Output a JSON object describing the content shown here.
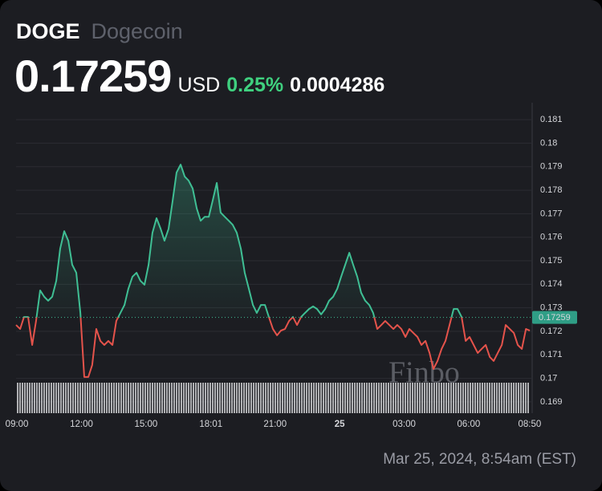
{
  "header": {
    "symbol": "DOGE",
    "name": "Dogecoin",
    "price": "0.17259",
    "currency": "USD",
    "change_percent": "0.25%",
    "change": "0.0004286"
  },
  "chart_data": {
    "type": "line",
    "x": [
      8.96,
      9.15,
      9.33,
      9.52,
      9.71,
      9.89,
      10.08,
      10.27,
      10.45,
      10.64,
      10.83,
      11.01,
      11.2,
      11.39,
      11.57,
      11.76,
      11.95,
      12.13,
      12.32,
      12.5,
      12.69,
      12.88,
      13.06,
      13.25,
      13.44,
      13.62,
      13.81,
      14.0,
      14.18,
      14.37,
      14.56,
      14.74,
      14.93,
      15.12,
      15.3,
      15.49,
      15.68,
      15.86,
      16.05,
      16.24,
      16.42,
      16.61,
      16.8,
      16.98,
      17.17,
      17.36,
      17.54,
      17.73,
      17.92,
      18.1,
      18.29,
      18.47,
      18.66,
      18.85,
      19.03,
      19.22,
      19.41,
      19.59,
      19.78,
      19.97,
      20.15,
      20.34,
      20.53,
      20.71,
      20.9,
      21.09,
      21.27,
      21.46,
      21.65,
      21.83,
      22.02,
      22.21,
      22.39,
      22.58,
      22.77,
      22.95,
      23.14,
      23.33,
      23.51,
      23.7,
      23.89,
      24.07,
      24.26,
      24.45,
      24.63,
      24.82,
      25.0,
      25.19,
      25.38,
      25.56,
      25.75,
      25.94,
      26.12,
      26.31,
      26.5,
      26.68,
      26.87,
      27.06,
      27.24,
      27.43,
      27.62,
      27.8,
      27.99,
      28.18,
      28.36,
      28.55,
      28.74,
      28.92,
      29.11,
      29.3,
      29.48,
      29.67,
      29.86,
      30.04,
      30.23,
      30.42,
      30.6,
      30.79,
      30.98,
      31.16,
      31.35,
      31.54,
      31.72,
      31.91,
      32.1,
      32.28,
      32.47,
      32.66,
      32.84
    ],
    "values": [
      0.17227,
      0.1721,
      0.17261,
      0.17261,
      0.17142,
      0.17244,
      0.17374,
      0.17347,
      0.1733,
      0.17347,
      0.17415,
      0.17551,
      0.17626,
      0.17585,
      0.17483,
      0.17449,
      0.17278,
      0.17006,
      0.17006,
      0.17057,
      0.1721,
      0.17159,
      0.17142,
      0.17159,
      0.17142,
      0.17244,
      0.17278,
      0.17312,
      0.17381,
      0.17432,
      0.17449,
      0.17415,
      0.17398,
      0.17483,
      0.17619,
      0.17681,
      0.17636,
      0.17585,
      0.17636,
      0.17756,
      0.17875,
      0.17909,
      0.17858,
      0.17841,
      0.17807,
      0.17722,
      0.1767,
      0.17687,
      0.17687,
      0.17756,
      0.17831,
      0.17705,
      0.17687,
      0.1767,
      0.17653,
      0.17619,
      0.17551,
      0.17449,
      0.17381,
      0.17312,
      0.17278,
      0.17312,
      0.17312,
      0.17261,
      0.1721,
      0.17183,
      0.17203,
      0.1721,
      0.17244,
      0.17261,
      0.17227,
      0.17261,
      0.17278,
      0.17295,
      0.17306,
      0.17295,
      0.17272,
      0.17295,
      0.1733,
      0.17347,
      0.17381,
      0.17432,
      0.17483,
      0.17534,
      0.17483,
      0.17432,
      0.17364,
      0.1733,
      0.17312,
      0.17278,
      0.1721,
      0.17227,
      0.17244,
      0.17227,
      0.1721,
      0.17227,
      0.1721,
      0.17176,
      0.1721,
      0.17193,
      0.17176,
      0.17142,
      0.17159,
      0.17108,
      0.1704,
      0.17074,
      0.17125,
      0.17159,
      0.17227,
      0.17295,
      0.17295,
      0.17261,
      0.17159,
      0.17176,
      0.17142,
      0.17108,
      0.17125,
      0.17142,
      0.17091,
      0.17074,
      0.17108,
      0.17142,
      0.17227,
      0.1721,
      0.17193,
      0.17142,
      0.17125,
      0.1721,
      0.17203
    ],
    "color_above": "#3fbf94",
    "color_below": "#e5534b",
    "current_value": 0.17259,
    "xlim": [
      8.96,
      32.95
    ],
    "xticks": [
      {
        "value": 9,
        "label": "09:00"
      },
      {
        "value": 12,
        "label": "12:00"
      },
      {
        "value": 15,
        "label": "15:00"
      },
      {
        "value": 18.017,
        "label": "18:01"
      },
      {
        "value": 21,
        "label": "21:00"
      },
      {
        "value": 24,
        "label": "25"
      },
      {
        "value": 27,
        "label": "03:00"
      },
      {
        "value": 30,
        "label": "06:00"
      },
      {
        "value": 32.833,
        "label": "08:50"
      }
    ],
    "ylim": [
      0.16852,
      0.18172
    ],
    "yticks": [
      0.169,
      0.17,
      0.171,
      0.172,
      0.173,
      0.174,
      0.175,
      0.176,
      0.177,
      0.178,
      0.179,
      0.18,
      0.181
    ],
    "grid": true,
    "watermark": "Finbo"
  },
  "footer": {
    "timestamp": "Mar 25, 2024, 8:54am (EST)"
  }
}
